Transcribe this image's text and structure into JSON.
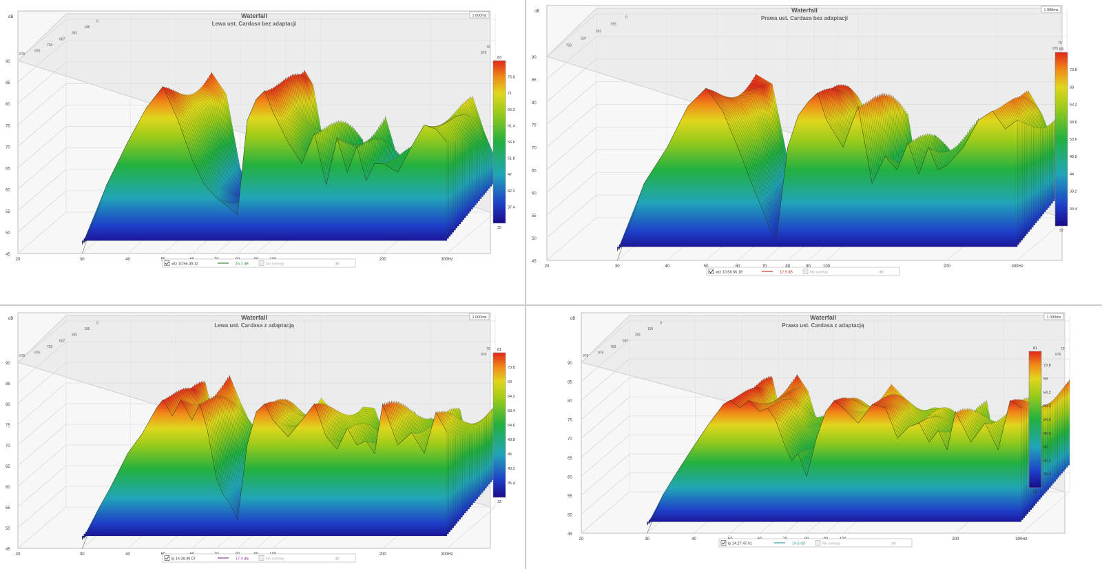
{
  "chart_data": [
    {
      "type": "area",
      "chart_kind": "waterfall",
      "title": "Waterfall",
      "subtitle": "Lewa ust. Cardasa bez adaptacji",
      "time_label": "1 000ms",
      "ylabel": "dB",
      "ylim": [
        45,
        90
      ],
      "y_ticks": [
        "45",
        "50",
        "55",
        "60",
        "65",
        "70",
        "75",
        "80",
        "85",
        "90"
      ],
      "x_scale": "log",
      "xlim": [
        20,
        300
      ],
      "x_ticks": [
        {
          "v": 20,
          "t": "20"
        },
        {
          "v": 30,
          "t": "30"
        },
        {
          "v": 40,
          "t": "40"
        },
        {
          "v": 50,
          "t": "50"
        },
        {
          "v": 60,
          "t": "60"
        },
        {
          "v": 70,
          "t": "70"
        },
        {
          "v": 80,
          "t": "80"
        },
        {
          "v": 90,
          "t": "90"
        },
        {
          "v": 100,
          "t": "100"
        },
        {
          "v": 200,
          "t": "200"
        },
        {
          "v": 300,
          "t": "300Hz"
        }
      ],
      "depth_ticks": [
        "976",
        "793",
        "607",
        "391",
        "195",
        "0"
      ],
      "back_tick_left": "976",
      "back_tick_right": "976",
      "right_top_tick": "70",
      "colorbar": {
        "top": "83",
        "ticks": [
          "75.8",
          "71",
          "66.3",
          "61.4",
          "56.6",
          "51.8",
          "47",
          "42.2",
          "37.4"
        ],
        "bottom": "35"
      },
      "legend": {
        "name": "wtz 10.56.49.12",
        "value": "15.1 dB",
        "overlay": "No overlay",
        "unit": "dB",
        "line_color": "#2e8b3a"
      },
      "front": {
        "freqs": [
          30,
          35,
          40,
          45,
          50,
          55,
          60,
          65,
          70,
          75,
          80,
          85,
          90,
          95,
          100,
          110,
          120,
          130,
          140,
          150,
          160,
          170,
          180,
          190,
          200,
          220,
          240,
          260,
          280,
          300
        ],
        "levels": [
          45,
          61,
          71,
          79,
          84,
          76,
          67,
          61,
          58,
          56,
          54,
          76,
          81,
          83,
          78,
          71,
          66,
          73,
          61,
          72,
          64,
          70,
          62,
          66,
          66,
          64,
          70,
          75,
          74,
          71
        ]
      }
    },
    {
      "type": "area",
      "chart_kind": "waterfall",
      "title": "Waterfall",
      "subtitle": "Prawa ust. Cardasa bez adaptacji",
      "time_label": "1 000ms",
      "ylabel": "dB",
      "ylim": [
        45,
        90
      ],
      "y_ticks": [
        "45",
        "50",
        "55",
        "60",
        "65",
        "70",
        "75",
        "80",
        "85",
        "90"
      ],
      "x_scale": "log",
      "xlim": [
        20,
        300
      ],
      "x_ticks": [
        {
          "v": 20,
          "t": "20"
        },
        {
          "v": 30,
          "t": "30"
        },
        {
          "v": 40,
          "t": "40"
        },
        {
          "v": 50,
          "t": "50"
        },
        {
          "v": 60,
          "t": "60"
        },
        {
          "v": 70,
          "t": "70"
        },
        {
          "v": 80,
          "t": "80"
        },
        {
          "v": 90,
          "t": "90"
        },
        {
          "v": 100,
          "t": "100"
        },
        {
          "v": 200,
          "t": "200"
        },
        {
          "v": 300,
          "t": "300Hz"
        }
      ],
      "depth_ticks": [
        "793",
        "597",
        "391",
        "195",
        "0"
      ],
      "back_tick_left": "",
      "back_tick_right": "976",
      "right_top_tick": "70",
      "colorbar": {
        "top": "83",
        "ticks": [
          "73.8",
          "68",
          "63.2",
          "58.6",
          "53.6",
          "48.8",
          "44",
          "39.2",
          "34.4"
        ],
        "bottom": "32"
      },
      "legend": {
        "name": "wtz 10.56.56.18",
        "value": "12.9 dB",
        "overlay": "No overlay",
        "unit": "dB",
        "line_color": "#c0392b"
      },
      "front": {
        "freqs": [
          30,
          35,
          40,
          45,
          50,
          55,
          60,
          65,
          70,
          72,
          75,
          80,
          85,
          90,
          95,
          100,
          110,
          120,
          130,
          140,
          150,
          160,
          170,
          180,
          190,
          200,
          220,
          240,
          260,
          280,
          300
        ],
        "levels": [
          45,
          62,
          70,
          79,
          83,
          78,
          70,
          62,
          55,
          52,
          50,
          70,
          77,
          80,
          82,
          76,
          70,
          79,
          62,
          68,
          65,
          71,
          64,
          70,
          65,
          66,
          70,
          76,
          78,
          74,
          76
        ]
      }
    },
    {
      "type": "area",
      "chart_kind": "waterfall",
      "title": "Waterfall",
      "subtitle": "Lewa ust. Cardasa z adaptacją",
      "time_label": "1 000ms",
      "ylabel": "dB",
      "ylim": [
        45,
        90
      ],
      "y_ticks": [
        "45",
        "50",
        "55",
        "60",
        "65",
        "70",
        "75",
        "80",
        "85",
        "90"
      ],
      "x_scale": "log",
      "xlim": [
        20,
        300
      ],
      "x_ticks": [
        {
          "v": 20,
          "t": "20"
        },
        {
          "v": 30,
          "t": "30"
        },
        {
          "v": 40,
          "t": "40"
        },
        {
          "v": 50,
          "t": "50"
        },
        {
          "v": 60,
          "t": "60"
        },
        {
          "v": 70,
          "t": "70"
        },
        {
          "v": 80,
          "t": "80"
        },
        {
          "v": 90,
          "t": "90"
        },
        {
          "v": 100,
          "t": "100"
        },
        {
          "v": 200,
          "t": "200"
        },
        {
          "v": 300,
          "t": "300Hz"
        }
      ],
      "depth_ticks": [
        "976",
        "793",
        "607",
        "391",
        "195",
        "0"
      ],
      "back_tick_left": "976",
      "back_tick_right": "976",
      "right_top_tick": "70",
      "colorbar": {
        "top": "81",
        "ticks": [
          "73.8",
          "69",
          "64.2",
          "59.4",
          "54.6",
          "49.8",
          "45",
          "40.2",
          "35.4"
        ],
        "bottom": "33"
      },
      "legend": {
        "name": "lp 14.39.40.07",
        "value": "17.4 dB",
        "overlay": "No overlay",
        "unit": "dB",
        "line_color": "#9b2fae"
      },
      "front": {
        "freqs": [
          30,
          33,
          36,
          40,
          44,
          48,
          50,
          53,
          56,
          60,
          63,
          66,
          70,
          73,
          76,
          80,
          85,
          90,
          95,
          100,
          110,
          120,
          130,
          140,
          150,
          160,
          170,
          180,
          190,
          200,
          220,
          240,
          260,
          280,
          300
        ],
        "levels": [
          45,
          54,
          60,
          68,
          73,
          79,
          81,
          77,
          81,
          76,
          80,
          74,
          62,
          58,
          56,
          52,
          70,
          78,
          80,
          76,
          72,
          76,
          80,
          72,
          69,
          74,
          70,
          71,
          68,
          80,
          70,
          73,
          68,
          78,
          73
        ]
      }
    },
    {
      "type": "area",
      "chart_kind": "waterfall",
      "title": "Waterfall",
      "subtitle": "Prawa ust. Cardasa z adaptacją",
      "time_label": "1 000ms",
      "ylabel": "dB",
      "ylim": [
        45,
        90
      ],
      "y_ticks": [
        "45",
        "50",
        "55",
        "60",
        "65",
        "70",
        "75",
        "80",
        "85",
        "90"
      ],
      "x_scale": "log",
      "xlim": [
        20,
        300
      ],
      "x_ticks": [
        {
          "v": 20,
          "t": "20"
        },
        {
          "v": 30,
          "t": "30"
        },
        {
          "v": 40,
          "t": "40"
        },
        {
          "v": 50,
          "t": "50"
        },
        {
          "v": 60,
          "t": "60"
        },
        {
          "v": 70,
          "t": "70"
        },
        {
          "v": 80,
          "t": "80"
        },
        {
          "v": 90,
          "t": "90"
        },
        {
          "v": 100,
          "t": "100"
        },
        {
          "v": 200,
          "t": "200"
        },
        {
          "v": 300,
          "t": "300Hz"
        }
      ],
      "depth_ticks": [
        "976",
        "793",
        "597",
        "391",
        "195",
        "0"
      ],
      "back_tick_left": "976",
      "back_tick_right": "976",
      "right_top_tick": "70",
      "colorbar": {
        "top": "81",
        "ticks": [
          "73.8",
          "69",
          "64.2",
          "59.4",
          "54.6",
          "49.8",
          "45",
          "40.2",
          "35.4"
        ],
        "bottom": "33"
      },
      "legend": {
        "name": "lp 14.27.47.41",
        "value": "24.8 dB",
        "overlay": "No overlay",
        "unit": "dB",
        "line_color": "#3aa0a0"
      },
      "front": {
        "freqs": [
          30,
          33,
          36,
          40,
          44,
          48,
          50,
          53,
          56,
          60,
          63,
          66,
          70,
          73,
          76,
          80,
          85,
          90,
          95,
          100,
          110,
          120,
          130,
          140,
          150,
          160,
          170,
          180,
          190,
          200,
          220,
          240,
          260,
          280,
          300
        ],
        "levels": [
          45,
          55,
          61,
          68,
          74,
          79,
          80,
          78,
          80,
          77,
          78,
          75,
          68,
          64,
          66,
          60,
          70,
          77,
          80,
          78,
          74,
          79,
          78,
          70,
          73,
          74,
          69,
          72,
          67,
          77,
          69,
          74,
          67,
          80,
          78
        ]
      }
    }
  ]
}
